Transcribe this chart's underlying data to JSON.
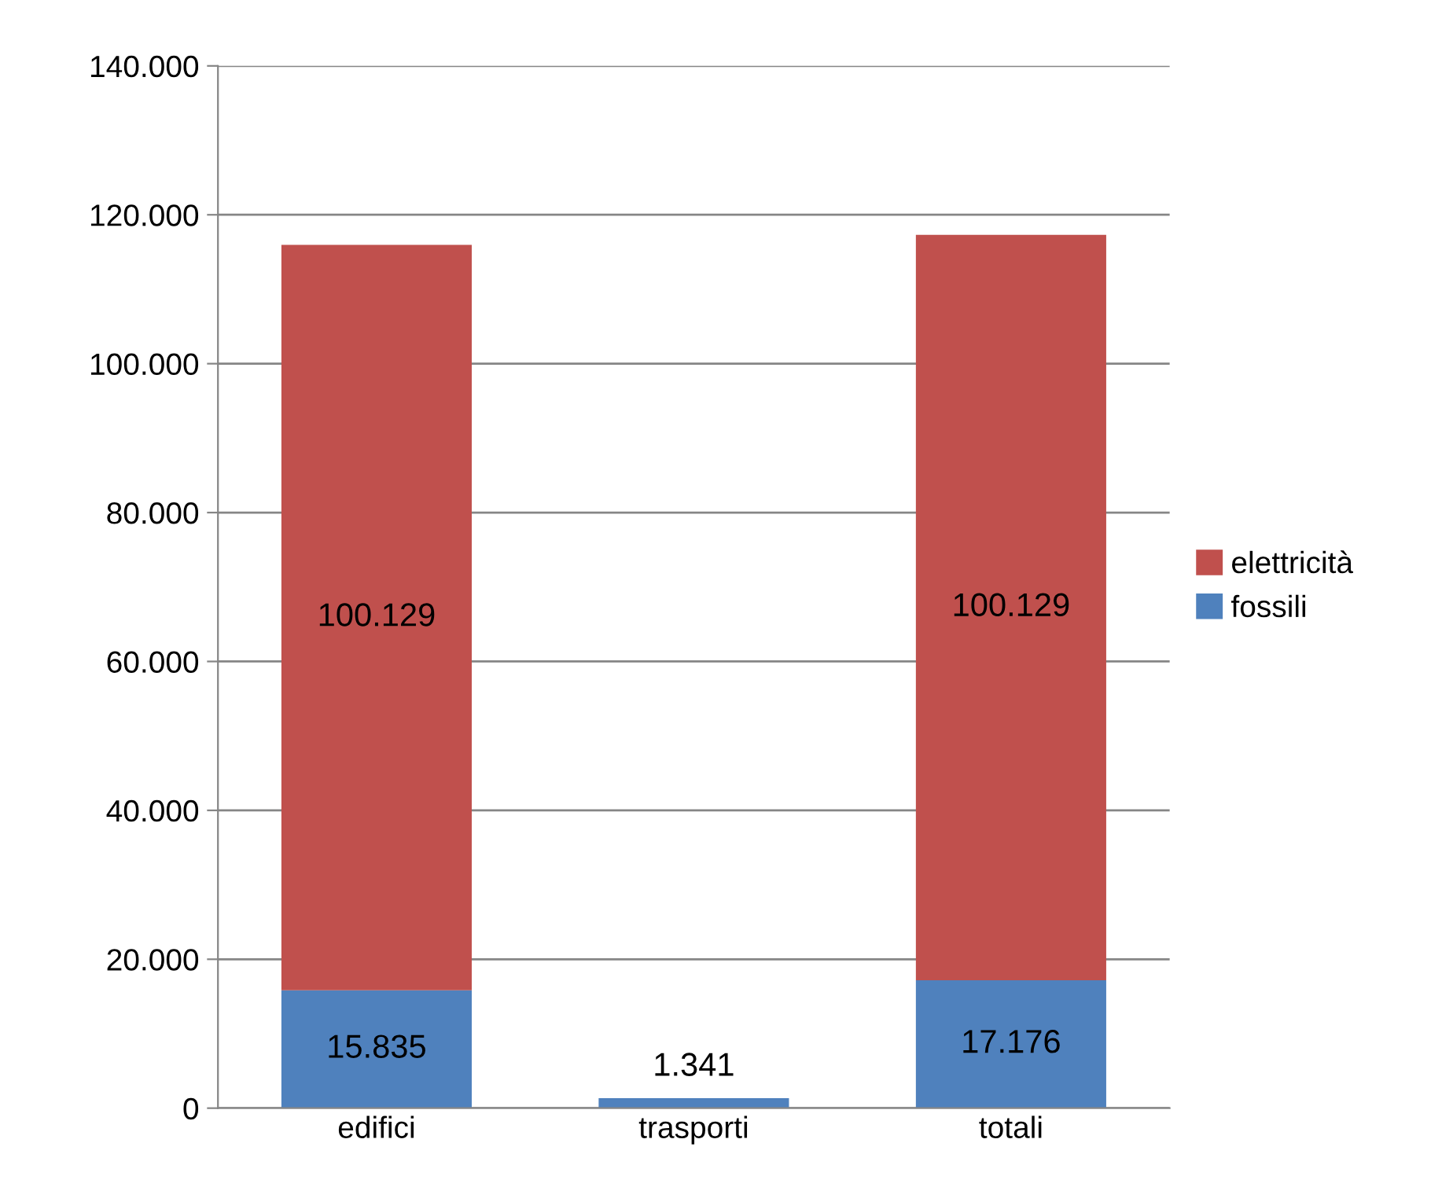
{
  "chart_data": {
    "type": "bar",
    "stacked": true,
    "categories": [
      "edifici",
      "trasporti",
      "totali"
    ],
    "series": [
      {
        "name": "fossili",
        "color": "#4f81bd",
        "values": [
          15835,
          1341,
          17176
        ],
        "value_labels": [
          "15.835",
          "1.341",
          "17.176"
        ]
      },
      {
        "name": "elettricità",
        "color": "#c0504d",
        "values": [
          100129,
          null,
          100129
        ],
        "value_labels": [
          "100.129",
          null,
          "100.129"
        ]
      }
    ],
    "ylim": [
      0,
      140000
    ],
    "yticks": [
      0,
      {
        "value": 20000,
        "label": "20.000"
      },
      {
        "value": 40000,
        "label": "40.000"
      },
      {
        "value": 60000,
        "label": "60.000"
      },
      {
        "value": 80000,
        "label": "80.000"
      },
      {
        "value": 100000,
        "label": "100.000"
      },
      {
        "value": 120000,
        "label": "120.000"
      },
      {
        "value": 140000,
        "label": "140.000"
      }
    ],
    "grid": "y",
    "legend": "right"
  }
}
